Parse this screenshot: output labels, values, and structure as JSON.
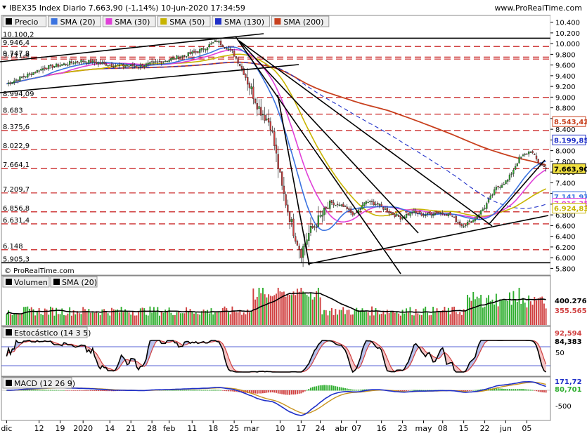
{
  "header": {
    "title": "IBEX35 Index Diario 7.663,90 (-1,14%) 10-jun-2020 17:34:59",
    "brand": "www.ProRealTime.com",
    "watermark": "© ProRealTime.com"
  },
  "colors": {
    "sma20": "#3b73e0",
    "sma30": "#e040d8",
    "sma50": "#c8b400",
    "sma130": "#1f2fc8",
    "sma200": "#c8401e",
    "up": "#2fae2f",
    "down": "#d04040",
    "level": "#c00000",
    "stoch_fill_up": "#f2b8b8",
    "stoch_fill_down": "#a8b4e8",
    "macd_pos": "#2fae2f",
    "macd_neg": "#d04040"
  },
  "legend": [
    {
      "label": "Precio",
      "color": "#000000",
      "key": "price"
    },
    {
      "label": "SMA (20)",
      "color": "#3b73e0",
      "key": "sma20"
    },
    {
      "label": "SMA (30)",
      "color": "#e040d8",
      "key": "sma30"
    },
    {
      "label": "SMA (50)",
      "color": "#c8b400",
      "key": "sma50"
    },
    {
      "label": "SMA (130)",
      "color": "#1f2fc8",
      "key": "sma130"
    },
    {
      "label": "SMA (200)",
      "color": "#c8401e",
      "key": "sma200"
    }
  ],
  "chart_data": {
    "type": "candlestick",
    "price_panel": {
      "ylim": [
        5700,
        10500
      ],
      "y_ticks": [
        "10.400",
        "10.200",
        "10.000",
        "9.800",
        "9.600",
        "9.400",
        "9.200",
        "9.000",
        "8.800",
        "8.600",
        "8.400",
        "8.200",
        "8.000",
        "7.800",
        "7.600",
        "7.400",
        "7.200",
        "7.000",
        "6.800",
        "6.600",
        "6.400",
        "6.200",
        "6.000",
        "5.800"
      ],
      "y_tick_values": [
        10400,
        10200,
        10000,
        9800,
        9600,
        9400,
        9200,
        9000,
        8800,
        8600,
        8400,
        8200,
        8000,
        7800,
        7600,
        7400,
        7200,
        7000,
        6800,
        6600,
        6400,
        6200,
        6000,
        5800
      ],
      "levels": [
        {
          "label": "10.100,2",
          "value": 10100.2,
          "solid": true
        },
        {
          "label": "9.946,4",
          "value": 9946.4,
          "solid": false
        },
        {
          "label": "9.747,8",
          "value": 9747.8,
          "solid": false
        },
        {
          "label": "9.711,4",
          "value": 9711.4,
          "solid": false
        },
        {
          "label": "8.994,09",
          "value": 8994.09,
          "solid": false
        },
        {
          "label": "8.683",
          "value": 8683,
          "solid": false
        },
        {
          "label": "8.375,6",
          "value": 8375.6,
          "solid": false
        },
        {
          "label": "8.022,9",
          "value": 8022.9,
          "solid": false
        },
        {
          "label": "7.664,1",
          "value": 7664.1,
          "solid": false
        },
        {
          "label": "7.209,7",
          "value": 7209.7,
          "solid": false
        },
        {
          "label": "6.856,8",
          "value": 6856.8,
          "solid": false
        },
        {
          "label": "6.631,4",
          "value": 6631.4,
          "solid": false
        },
        {
          "label": "6.148",
          "value": 6148,
          "solid": false
        },
        {
          "label": "5.905,3",
          "value": 5905.3,
          "solid": true
        }
      ],
      "tags": [
        {
          "label": "8.543,42",
          "value": 8543.42,
          "color": "#c8401e"
        },
        {
          "label": "8.199,85",
          "value": 8199.85,
          "color": "#1f2fc8"
        },
        {
          "label": "7.663,90",
          "value": 7663.9,
          "color": "#000000"
        },
        {
          "label": "7.141,97",
          "value": 7141.97,
          "color": "#3b73e0"
        },
        {
          "label": "7.016,35",
          "value": 7016.35,
          "color": "#e040d8"
        },
        {
          "label": "6.924,83",
          "value": 6924.83,
          "color": "#c8b400"
        }
      ]
    },
    "x_labels": [
      "dic",
      "12",
      "19",
      "2020",
      "14",
      "21",
      "28",
      "feb",
      "11",
      "18",
      "25",
      "mar",
      "10",
      "17",
      "24",
      "abr",
      "07",
      "16",
      "23",
      "may",
      "08",
      "15",
      "22",
      "jun",
      "05"
    ],
    "x_label_index": [
      0,
      17,
      28,
      40,
      54,
      65,
      76,
      85,
      97,
      108,
      119,
      128,
      143,
      154,
      164,
      175,
      183,
      196,
      207,
      218,
      228,
      239,
      250,
      261,
      272
    ],
    "n_bars": 283,
    "close_anchors": [
      [
        0,
        9250
      ],
      [
        20,
        9550
      ],
      [
        40,
        9680
      ],
      [
        55,
        9600
      ],
      [
        70,
        9580
      ],
      [
        85,
        9700
      ],
      [
        100,
        9850
      ],
      [
        110,
        10050
      ],
      [
        118,
        9850
      ],
      [
        122,
        9600
      ],
      [
        126,
        9300
      ],
      [
        132,
        8800
      ],
      [
        138,
        8500
      ],
      [
        144,
        7300
      ],
      [
        150,
        6500
      ],
      [
        154,
        6100
      ],
      [
        158,
        6450
      ],
      [
        165,
        6800
      ],
      [
        170,
        7000
      ],
      [
        176,
        6950
      ],
      [
        182,
        6800
      ],
      [
        188,
        7050
      ],
      [
        194,
        7000
      ],
      [
        200,
        6850
      ],
      [
        206,
        6750
      ],
      [
        212,
        6850
      ],
      [
        218,
        6800
      ],
      [
        226,
        6850
      ],
      [
        232,
        6800
      ],
      [
        238,
        6600
      ],
      [
        244,
        6700
      ],
      [
        250,
        6950
      ],
      [
        256,
        7300
      ],
      [
        262,
        7450
      ],
      [
        268,
        7850
      ],
      [
        274,
        8000
      ],
      [
        278,
        7780
      ],
      [
        282,
        7664
      ]
    ],
    "volume_panel": {
      "labels": [
        "400.276",
        "355.565"
      ],
      "values": [
        400276,
        355565
      ]
    },
    "stochastic_panel": {
      "title": "Estocástico (14 3 5)",
      "labels": [
        "92,594",
        "84,383"
      ],
      "values": [
        92.594,
        84.383
      ],
      "y_ticks": [
        "50"
      ]
    },
    "macd_panel": {
      "title": "MACD (12 26 9)",
      "labels": [
        "171,72",
        "80,701"
      ],
      "values": [
        171.72,
        80.701
      ],
      "y_ticks": [
        "-500"
      ]
    },
    "volume_title": "Volumen",
    "volume_sma_label": "SMA (20)"
  }
}
